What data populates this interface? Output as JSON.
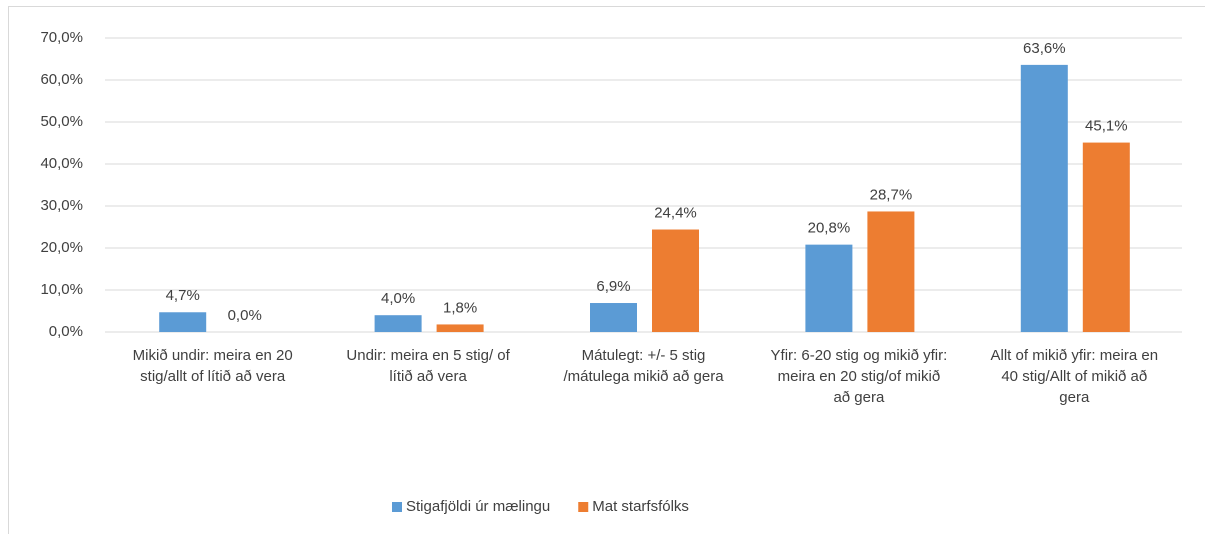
{
  "chart_data": {
    "type": "bar",
    "categories": [
      "Mikið undir: meira en 20 stig/allt of lítið að vera",
      "Undir: meira en 5 stig/ of lítið að vera",
      "Mátulegt: +/- 5 stig /mátulega mikið að gera",
      "Yfir: 6-20 stig og mikið yfir: meira en 20 stig/of mikið að gera",
      "Allt of mikið yfir: meira en 40 stig/Allt of mikið að gera"
    ],
    "series": [
      {
        "name": "Stigafjöldi úr mælingu",
        "color": "#5b9bd5",
        "values": [
          4.7,
          4.0,
          6.9,
          20.8,
          63.6
        ],
        "value_labels": [
          "4,7%",
          "4,0%",
          "6,9%",
          "20,8%",
          "63,6%"
        ]
      },
      {
        "name": "Mat starfsfólks",
        "color": "#ed7d31",
        "values": [
          0.0,
          1.8,
          24.4,
          28.7,
          45.1
        ],
        "value_labels": [
          "0,0%",
          "1,8%",
          "24,4%",
          "28,7%",
          "45,1%"
        ]
      }
    ],
    "ylim": [
      0,
      70
    ],
    "yticks": [
      {
        "value": 0,
        "label": "0,0%"
      },
      {
        "value": 10,
        "label": "10,0%"
      },
      {
        "value": 20,
        "label": "20,0%"
      },
      {
        "value": 30,
        "label": "30,0%"
      },
      {
        "value": 40,
        "label": "40,0%"
      },
      {
        "value": 50,
        "label": "50,0%"
      },
      {
        "value": 60,
        "label": "60,0%"
      },
      {
        "value": 70,
        "label": "70,0%"
      }
    ],
    "grid": true,
    "legend": "bottom"
  }
}
